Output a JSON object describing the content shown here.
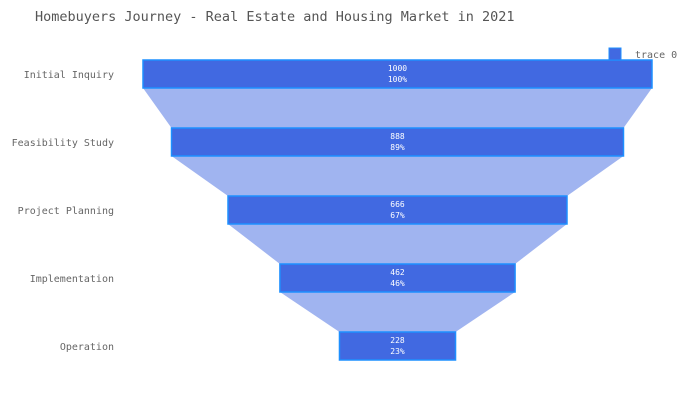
{
  "chart_data": {
    "type": "funnel",
    "title": "Homebuyers Journey - Real Estate and Housing Market in 2021",
    "categories": [
      "Initial Inquiry",
      "Feasibility Study",
      "Project Planning",
      "Implementation",
      "Operation"
    ],
    "series": [
      {
        "name": "trace 0",
        "values": [
          1000,
          888,
          666,
          462,
          228
        ],
        "percent_labels": [
          "100%",
          "89%",
          "67%",
          "46%",
          "23%"
        ]
      }
    ],
    "legend_position": "top-right",
    "grid": false
  },
  "colors": {
    "bar_fill": "#4169e1",
    "bar_stroke": "#1e90ff",
    "connector_fill": "#a0b4f0",
    "title_text": "#555555",
    "axis_text": "#666666",
    "value_text": "#ffffff"
  }
}
